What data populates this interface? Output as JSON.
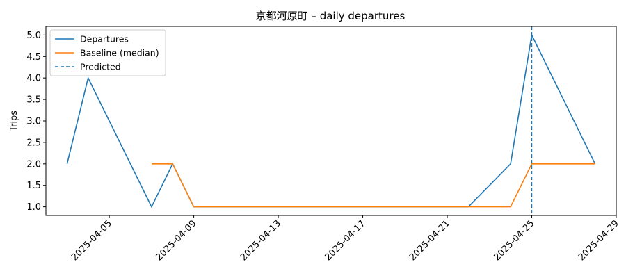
{
  "chart_data": {
    "type": "line",
    "title": "京都河原町 – daily departures",
    "xlabel": "",
    "ylabel": "Trips",
    "x_type": "date",
    "xlim": [
      "2025-04-02",
      "2025-04-29"
    ],
    "ylim": [
      0.8,
      5.2
    ],
    "x_ticks": [
      "2025-04-05",
      "2025-04-09",
      "2025-04-13",
      "2025-04-17",
      "2025-04-21",
      "2025-04-25",
      "2025-04-29"
    ],
    "y_ticks": [
      "1.0",
      "1.5",
      "2.0",
      "2.5",
      "3.0",
      "3.5",
      "4.0",
      "4.5",
      "5.0"
    ],
    "grid": false,
    "legend_position": "top-left",
    "series": [
      {
        "name": "Departures",
        "color": "#1f77b4",
        "style": "solid",
        "points": [
          {
            "x": "2025-04-03",
            "y": 2
          },
          {
            "x": "2025-04-04",
            "y": 4
          },
          {
            "x": "2025-04-07",
            "y": 1
          },
          {
            "x": "2025-04-08",
            "y": 2
          },
          {
            "x": "2025-04-09",
            "y": 1
          },
          {
            "x": "2025-04-22",
            "y": 1
          },
          {
            "x": "2025-04-24",
            "y": 2
          },
          {
            "x": "2025-04-25",
            "y": 5
          },
          {
            "x": "2025-04-28",
            "y": 2
          }
        ]
      },
      {
        "name": "Baseline (median)",
        "color": "#ff7f0e",
        "style": "solid",
        "points": [
          {
            "x": "2025-04-07",
            "y": 2
          },
          {
            "x": "2025-04-08",
            "y": 2
          },
          {
            "x": "2025-04-09",
            "y": 1
          },
          {
            "x": "2025-04-24",
            "y": 1
          },
          {
            "x": "2025-04-25",
            "y": 2
          },
          {
            "x": "2025-04-28",
            "y": 2
          }
        ]
      }
    ],
    "predicted": {
      "name": "Predicted",
      "x": "2025-04-25",
      "color": "#1f77b4",
      "style": "dashed"
    }
  }
}
